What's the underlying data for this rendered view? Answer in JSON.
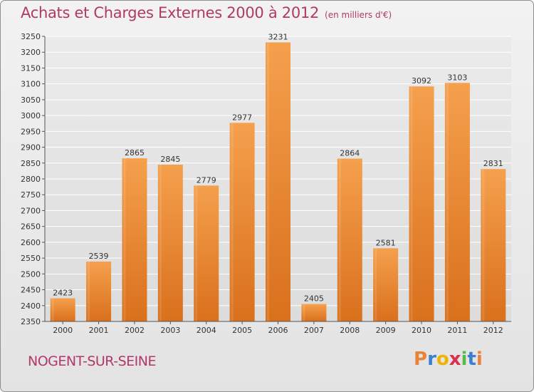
{
  "header": {
    "title": "Achats et Charges Externes 2000 à 2012",
    "unit": "(en milliers d'€)"
  },
  "footer": {
    "city": "NOGENT-SUR-SEINE",
    "logo": {
      "text": "Proxiti",
      "letters": [
        "P",
        "r",
        "o",
        "x",
        "i",
        "t",
        "i"
      ],
      "colors": [
        "#e8833a",
        "#3a7fd0",
        "#f0b400",
        "#d9304f",
        "#5ab84a",
        "#3a7fd0",
        "#e8833a"
      ]
    }
  },
  "chart_data": {
    "type": "bar",
    "title": "Achats et Charges Externes 2000 à 2012",
    "subtitle": "(en milliers d'€)",
    "categories": [
      "2000",
      "2001",
      "2002",
      "2003",
      "2004",
      "2005",
      "2006",
      "2007",
      "2008",
      "2009",
      "2010",
      "2011",
      "2012"
    ],
    "values": [
      2423,
      2539,
      2865,
      2845,
      2779,
      2977,
      3231,
      2405,
      2864,
      2581,
      3092,
      3103,
      2831
    ],
    "ylim": [
      2350,
      3250
    ],
    "yticks": [
      2350,
      2400,
      2450,
      2500,
      2550,
      2600,
      2650,
      2700,
      2750,
      2800,
      2850,
      2900,
      2950,
      3000,
      3050,
      3100,
      3150,
      3200,
      3250
    ],
    "grid": true,
    "bar_color": "#f2943f"
  }
}
